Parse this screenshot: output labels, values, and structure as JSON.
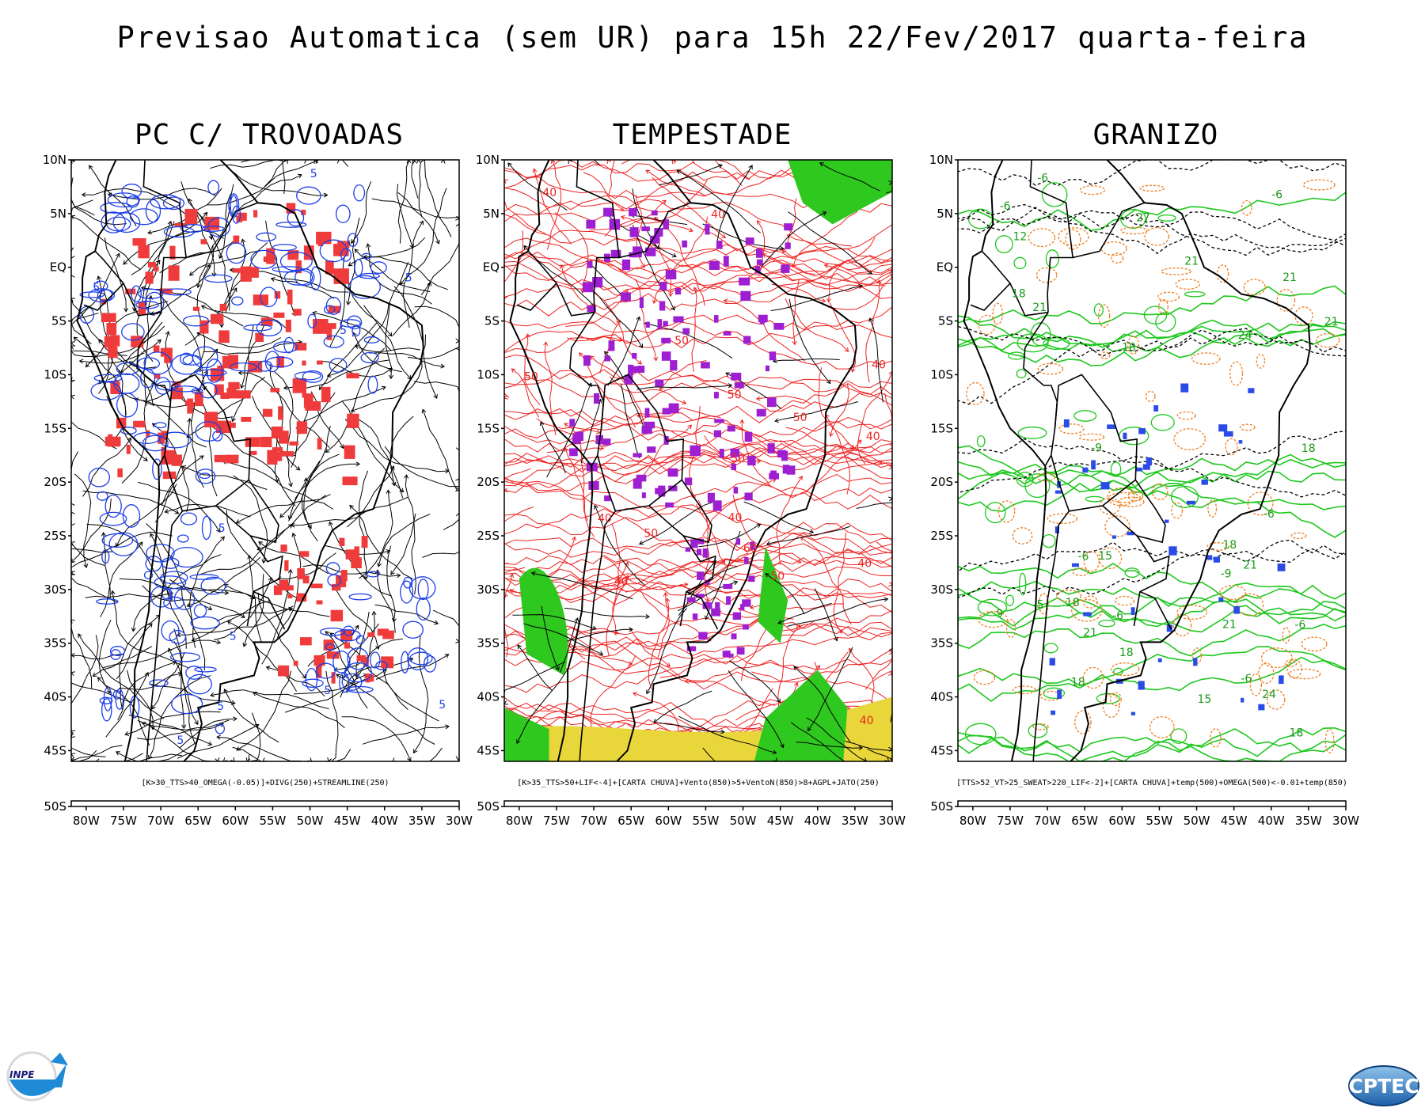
{
  "title": "Previsao Automatica (sem UR) para 15h 22/Fev/2017 quarta-feira",
  "lat_labels": [
    "10N",
    "5N",
    "EQ",
    "5S",
    "10S",
    "15S",
    "20S",
    "25S",
    "30S",
    "35S",
    "40S",
    "45S",
    "50S"
  ],
  "lon_labels": [
    "80W",
    "75W",
    "70W",
    "65W",
    "60W",
    "55W",
    "50W",
    "45W",
    "40W",
    "35W",
    "30W"
  ],
  "panels": [
    {
      "id": "pc-trovoadas",
      "title": "PC C/ TROVOADAS",
      "caption": "[K>30_TTS>40_OMEGA(-0.05)]+DIVG(250)+STREAMLINE(250)",
      "contour_labels": [
        "5",
        "5",
        "5",
        "5",
        "5",
        "5",
        "5",
        "5",
        "5",
        "5"
      ],
      "colors": {
        "fill": "#ef3b3b",
        "contour": "#1c3fe8",
        "stream": "#000000"
      }
    },
    {
      "id": "tempestade",
      "title": "TEMPESTADE",
      "caption": "[K>35_TTS>50+LIF<-4]+[CARTA CHUVA]+Vento(850)>5+VentoN(850)>8+AGPL+JATO(250)",
      "contour_labels": [
        "40",
        "50",
        "50",
        "40",
        "60",
        "50",
        "40",
        "40",
        "50",
        "40",
        "50",
        "40",
        "50",
        "40",
        "40",
        "40",
        "50"
      ],
      "colors": {
        "fill": "#9e1fd1",
        "contour": "#ee2222",
        "jet": "#2fc81e",
        "agpl": "#e8d63a"
      }
    },
    {
      "id": "granizo",
      "title": "GRANIZO",
      "caption": "[TTS>52_VT>25_SWEAT>220_LIF<-2]+[CARTA CHUVA]+temp(500)+OMEGA(500)<-0.01+temp(850)",
      "contour_labels": [
        "18",
        "21",
        "18",
        "-6",
        "-6",
        "-6",
        "18",
        "21",
        "18",
        "-6",
        "-6",
        "-6",
        "21",
        "18",
        "-6",
        "-5",
        "18",
        "24",
        "21",
        "-9",
        "-6",
        "21",
        "27",
        "24",
        "21",
        "18",
        "-9",
        "15",
        "12",
        "9",
        "15",
        "18",
        "21"
      ],
      "colors": {
        "fill": "#2a4be8",
        "green": "#1ec81e",
        "orange": "#f07d1e",
        "black": "#000000"
      }
    }
  ],
  "logos": {
    "inpe": "INPE",
    "cptec": "CPTEC"
  }
}
